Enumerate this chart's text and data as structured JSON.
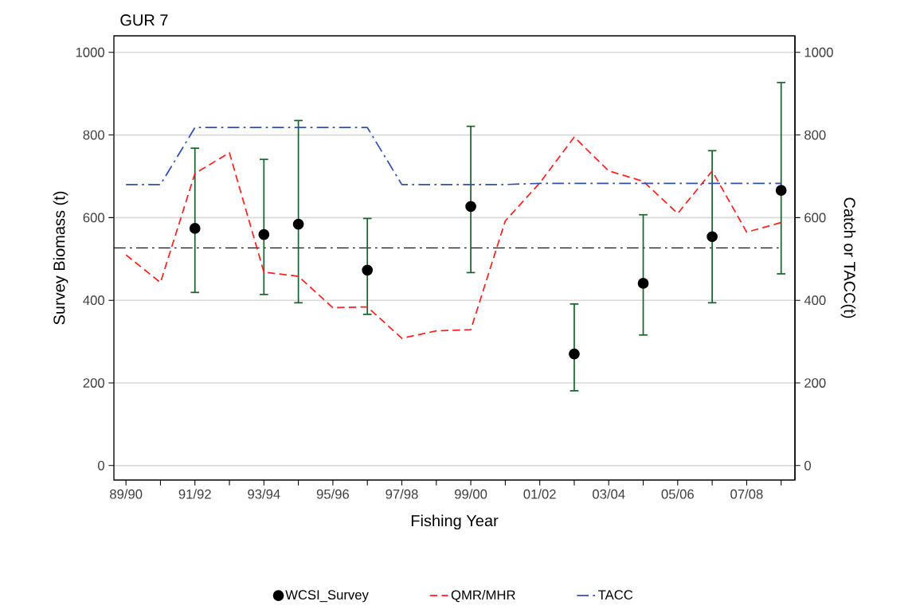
{
  "chart_data": {
    "type": "line",
    "title": "GUR 7",
    "xlabel": "Fishing Year",
    "ylabel": "Survey Biomass (t)",
    "y2label": "Catch or TACC(t)",
    "categories": [
      "89/90",
      null,
      "91/92",
      null,
      "93/94",
      null,
      "95/96",
      null,
      "97/98",
      null,
      "99/00",
      null,
      "01/02",
      null,
      "03/04",
      null,
      "05/06",
      null,
      "07/08",
      null
    ],
    "series": [
      {
        "name": "WCSI_Survey",
        "type": "scatter",
        "color": "#000000",
        "marker": "circle",
        "values": [
          null,
          null,
          574,
          null,
          559,
          584,
          null,
          473,
          null,
          null,
          627,
          null,
          null,
          270,
          null,
          441,
          null,
          554,
          null,
          666
        ],
        "errors": [
          null,
          null,
          [
            419,
            768
          ],
          null,
          [
            414,
            741
          ],
          [
            394,
            835
          ],
          null,
          [
            366,
            598
          ],
          null,
          null,
          [
            467,
            821
          ],
          null,
          null,
          [
            181,
            391
          ],
          null,
          [
            316,
            607
          ],
          null,
          [
            394,
            762
          ],
          null,
          [
            464,
            927
          ]
        ]
      },
      {
        "name": "QMR/MHR",
        "axis": "y2",
        "color": "#ff2020",
        "line_style": "dashed",
        "marker": "none",
        "values": [
          510,
          443,
          707,
          757,
          468,
          458,
          382,
          384,
          308,
          326,
          329,
          592,
          684,
          795,
          713,
          688,
          610,
          713,
          565,
          588
        ]
      },
      {
        "name": "TACC",
        "axis": "y2",
        "color": "#3050b0",
        "line_style": "dashdot",
        "marker": "none",
        "values": [
          680,
          680,
          818,
          818,
          818,
          818,
          818,
          818,
          680,
          680,
          680,
          680,
          683,
          683,
          683,
          683,
          683,
          683,
          683,
          683
        ]
      }
    ],
    "ylim": [
      -35,
      1040
    ],
    "yticks": [
      0,
      200,
      400,
      600,
      800,
      1000
    ],
    "y2lim": [
      -35,
      1040
    ],
    "y2ticks": [
      0,
      200,
      400,
      600,
      800,
      1000
    ],
    "grid": "y",
    "legend": "bottom",
    "ref_lines": [
      {
        "axis": "y",
        "value": 527,
        "color": "#000000",
        "line_style": "dashdot"
      }
    ]
  }
}
